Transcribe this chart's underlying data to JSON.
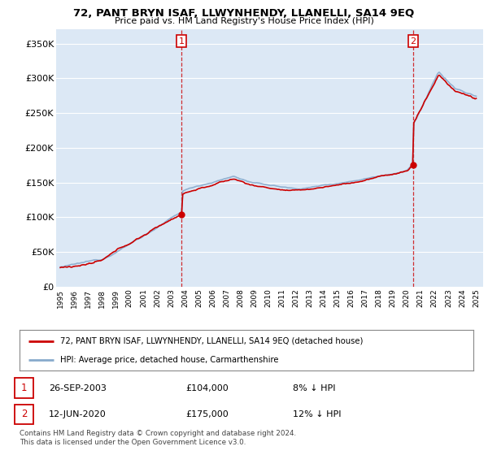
{
  "title": "72, PANT BRYN ISAF, LLWYNHENDY, LLANELLI, SA14 9EQ",
  "subtitle": "Price paid vs. HM Land Registry's House Price Index (HPI)",
  "ylabel_ticks": [
    "£0",
    "£50K",
    "£100K",
    "£150K",
    "£200K",
    "£250K",
    "£300K",
    "£350K"
  ],
  "ytick_values": [
    0,
    50000,
    100000,
    150000,
    200000,
    250000,
    300000,
    350000
  ],
  "ylim": [
    0,
    370000
  ],
  "xlim_start": 1994.7,
  "xlim_end": 2025.5,
  "hpi_color": "#88aacc",
  "price_color": "#cc0000",
  "vline_color": "#cc0000",
  "marker1_date": 2003.74,
  "marker1_value": 104000,
  "marker1_label": "1",
  "marker2_date": 2020.45,
  "marker2_value": 175000,
  "marker2_label": "2",
  "legend_line1": "72, PANT BRYN ISAF, LLWYNHENDY, LLANELLI, SA14 9EQ (detached house)",
  "legend_line2": "HPI: Average price, detached house, Carmarthenshire",
  "bg_color": "#ffffff",
  "plot_bg_color": "#dce8f5",
  "grid_color": "#ffffff",
  "footnote": "Contains HM Land Registry data © Crown copyright and database right 2024.\nThis data is licensed under the Open Government Licence v3.0."
}
